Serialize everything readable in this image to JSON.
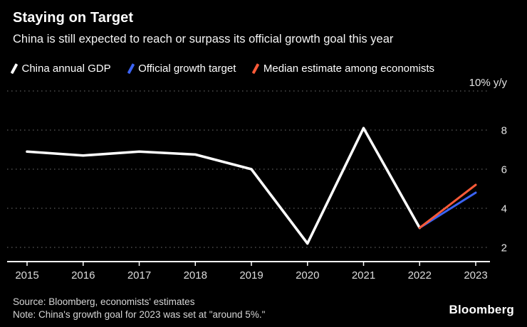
{
  "header": {
    "title": "Staying on Target",
    "subtitle": "China is still expected to reach or surpass its official growth goal this year"
  },
  "legend": {
    "items": [
      {
        "label": "China annual GDP",
        "color": "#ffffff"
      },
      {
        "label": "Official growth target",
        "color": "#3b63f3"
      },
      {
        "label": "Median estimate among economists",
        "color": "#fa5a38"
      }
    ]
  },
  "chart_data": {
    "type": "line",
    "title": "Staying on Target",
    "x": [
      2015,
      2016,
      2017,
      2018,
      2019,
      2020,
      2021,
      2022,
      2023
    ],
    "series": [
      {
        "name": "China annual GDP",
        "color": "#ffffff",
        "x": [
          2015,
          2016,
          2017,
          2018,
          2019,
          2020,
          2021,
          2022
        ],
        "values": [
          6.9,
          6.7,
          6.9,
          6.75,
          6.0,
          2.2,
          8.1,
          3.0
        ]
      },
      {
        "name": "Official growth target",
        "color": "#3b63f3",
        "x": [
          2022,
          2023
        ],
        "values": [
          3.0,
          4.8
        ]
      },
      {
        "name": "Median estimate among economists",
        "color": "#fa5a38",
        "x": [
          2022,
          2023
        ],
        "values": [
          3.0,
          5.2
        ]
      }
    ],
    "xlabel": "",
    "ylabel": "",
    "ylim": [
      1.3,
      10.5
    ],
    "y_gridlines": [
      2,
      4,
      6,
      8,
      10
    ],
    "y_ticks": [
      2,
      4,
      6,
      8
    ],
    "y_top_label": "10% y/y",
    "x_ticks": [
      "2015",
      "2016",
      "2017",
      "2018",
      "2019",
      "2020",
      "2021",
      "2022",
      "2023"
    ],
    "grid": "dotted-horizontal",
    "legend_position": "top"
  },
  "footer": {
    "source": "Source: Bloomberg, economists' estimates",
    "note": "Note: China's growth goal for 2023 was set at \"around 5%.\"",
    "brand": "Bloomberg"
  }
}
